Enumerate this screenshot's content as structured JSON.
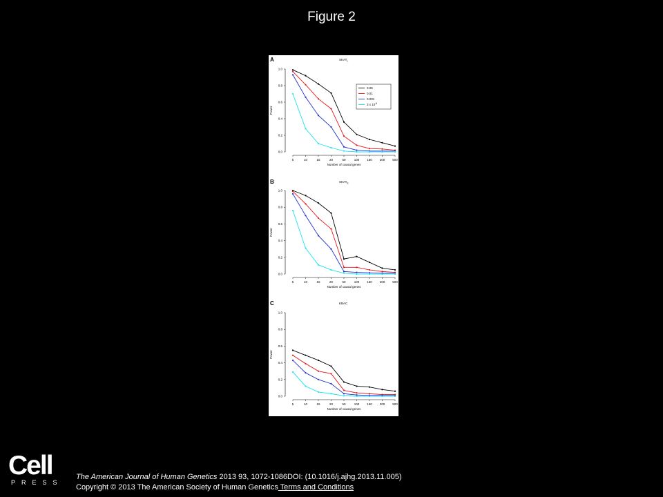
{
  "slide": {
    "title": "Figure 2"
  },
  "footer": {
    "logo_text": "Cell",
    "logo_sub": "PRESS",
    "journal": "The American Journal of Human Genetics",
    "citation_rest": " 2013 93, 1072-1086DOI: (10.1016/j.ajhg.2013.11.005)",
    "copyright": "Copyright © 2013 The American Society of Human Genetics",
    "link": " Terms and Conditions"
  },
  "chart_data": [
    {
      "type": "line",
      "panel": "A",
      "title": "SKAT",
      "title_sub": "L",
      "xlabel": "Number of causal genes",
      "ylabel": "Power",
      "categories": [
        "5",
        "10",
        "15",
        "20",
        "50",
        "100",
        "150",
        "200",
        "500"
      ],
      "ylim": [
        0,
        1.0
      ],
      "yticks": [
        "0.0",
        "0.2",
        "0.4",
        "0.6",
        "0.8",
        "1.0"
      ],
      "legend": "right",
      "colors": [
        "#000000",
        "#e31a1c",
        "#1f2fd0",
        "#19e3f0"
      ],
      "series": [
        {
          "name": "0.05",
          "values": [
            0.99,
            0.92,
            0.82,
            0.71,
            0.36,
            0.21,
            0.15,
            0.11,
            0.07
          ]
        },
        {
          "name": "0.01",
          "values": [
            0.97,
            0.81,
            0.64,
            0.52,
            0.19,
            0.08,
            0.04,
            0.035,
            0.02
          ]
        },
        {
          "name": "0.001",
          "values": [
            0.93,
            0.66,
            0.44,
            0.3,
            0.06,
            0.02,
            0.01,
            0.01,
            0.01
          ]
        },
        {
          "name": "3 x 10",
          "name_sup": "-6",
          "values": [
            0.7,
            0.28,
            0.1,
            0.05,
            0.01,
            0.0,
            0.0,
            0.0,
            0.0
          ]
        }
      ]
    },
    {
      "type": "line",
      "panel": "B",
      "title": "SKAT",
      "title_sub": "E",
      "xlabel": "Number of causal genes",
      "ylabel": "Power",
      "categories": [
        "5",
        "10",
        "15",
        "20",
        "50",
        "100",
        "150",
        "200",
        "500"
      ],
      "ylim": [
        0,
        1.0
      ],
      "yticks": [
        "0.0",
        "0.2",
        "0.4",
        "0.6",
        "0.8",
        "1.0"
      ],
      "colors": [
        "#000000",
        "#e31a1c",
        "#1f2fd0",
        "#19e3f0"
      ],
      "series": [
        {
          "values": [
            1.0,
            0.94,
            0.85,
            0.73,
            0.18,
            0.21,
            0.14,
            0.07,
            0.05
          ]
        },
        {
          "values": [
            0.99,
            0.84,
            0.67,
            0.54,
            0.08,
            0.08,
            0.05,
            0.03,
            0.02
          ]
        },
        {
          "values": [
            0.96,
            0.7,
            0.46,
            0.3,
            0.03,
            0.02,
            0.015,
            0.01,
            0.01
          ]
        },
        {
          "values": [
            0.76,
            0.31,
            0.11,
            0.05,
            0.01,
            0.0,
            0.0,
            0.0,
            0.0
          ]
        }
      ]
    },
    {
      "type": "line",
      "panel": "C",
      "title": "KBAC",
      "title_sub": "",
      "xlabel": "Number of causal genes",
      "ylabel": "Power",
      "categories": [
        "5",
        "10",
        "15",
        "20",
        "50",
        "100",
        "150",
        "200",
        "500"
      ],
      "ylim": [
        0,
        1.0
      ],
      "yticks": [
        "0.0",
        "0.2",
        "0.4",
        "0.6",
        "0.8",
        "1.0"
      ],
      "colors": [
        "#000000",
        "#e31a1c",
        "#1f2fd0",
        "#19e3f0"
      ],
      "series": [
        {
          "values": [
            0.55,
            0.49,
            0.43,
            0.36,
            0.17,
            0.12,
            0.11,
            0.08,
            0.06
          ]
        },
        {
          "values": [
            0.49,
            0.39,
            0.3,
            0.27,
            0.07,
            0.04,
            0.03,
            0.02,
            0.02
          ]
        },
        {
          "values": [
            0.43,
            0.28,
            0.2,
            0.15,
            0.03,
            0.015,
            0.01,
            0.01,
            0.01
          ]
        },
        {
          "values": [
            0.29,
            0.12,
            0.05,
            0.03,
            0.005,
            0.0,
            0.0,
            0.0,
            0.0
          ]
        }
      ]
    }
  ]
}
